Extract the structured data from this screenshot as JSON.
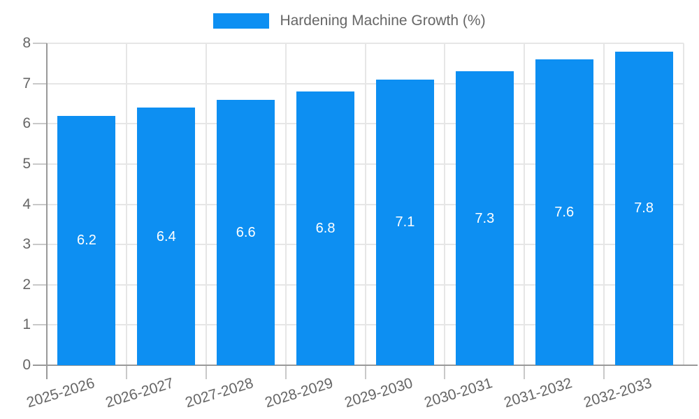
{
  "legend": {
    "label": "Hardening Machine Growth (%)",
    "swatch_color": "#0d8ff2"
  },
  "chart_data": {
    "type": "bar",
    "title": "",
    "xlabel": "",
    "ylabel": "",
    "legend_entries": [
      "Hardening Machine Growth (%)"
    ],
    "legend_position": "top-center",
    "categories": [
      "2025-2026",
      "2026-2027",
      "2027-2028",
      "2028-2029",
      "2029-2030",
      "2030-2031",
      "2031-2032",
      "2032-2033"
    ],
    "values": [
      6.2,
      6.4,
      6.6,
      6.8,
      7.1,
      7.3,
      7.6,
      7.8
    ],
    "value_labels": [
      "6.2",
      "6.4",
      "6.6",
      "6.8",
      "7.1",
      "7.3",
      "7.6",
      "7.8"
    ],
    "ylim": [
      0,
      8
    ],
    "y_ticks": [
      0,
      1,
      2,
      3,
      4,
      5,
      6,
      7,
      8
    ],
    "grid": true,
    "colors": {
      "bar": "#0d8ff2",
      "bar_value_text": "#ffffff",
      "axis_text": "#666666",
      "gridline": "#e6e6e6",
      "axis_line": "#999999",
      "tick": "#c9c9c9"
    }
  }
}
